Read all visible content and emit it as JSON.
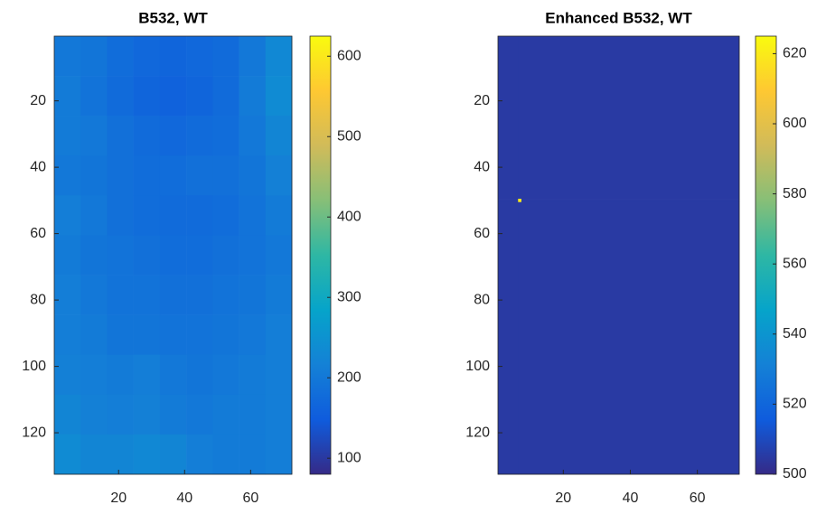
{
  "chart_data": [
    {
      "type": "heatmap",
      "title": "B532, WT",
      "xbins": [
        0.5,
        8.5,
        16.5,
        24.5,
        32.5,
        40.5,
        48.5,
        56.5,
        64.5,
        72.5
      ],
      "ybins": [
        0.5,
        12.5,
        24.5,
        36.5,
        48.5,
        60.5,
        72.5,
        84.5,
        96.5,
        108.5,
        120.5,
        132.5
      ],
      "values": [
        [
          200,
          195,
          180,
          170,
          165,
          170,
          175,
          200,
          230
        ],
        [
          205,
          190,
          175,
          165,
          160,
          165,
          175,
          205,
          235
        ],
        [
          205,
          200,
          185,
          175,
          170,
          175,
          180,
          200,
          225
        ],
        [
          200,
          195,
          185,
          180,
          180,
          185,
          185,
          195,
          215
        ],
        [
          210,
          200,
          185,
          180,
          175,
          175,
          180,
          190,
          205
        ],
        [
          205,
          195,
          190,
          185,
          180,
          180,
          185,
          190,
          200
        ],
        [
          210,
          200,
          190,
          190,
          185,
          185,
          190,
          195,
          205
        ],
        [
          210,
          205,
          195,
          195,
          190,
          190,
          195,
          200,
          210
        ],
        [
          215,
          210,
          205,
          210,
          200,
          195,
          200,
          205,
          210
        ],
        [
          225,
          215,
          210,
          215,
          205,
          200,
          205,
          205,
          210
        ],
        [
          235,
          225,
          225,
          230,
          225,
          210,
          205,
          205,
          210
        ]
      ],
      "xlim": [
        0.5,
        72.5
      ],
      "ylim": [
        0.5,
        132.5
      ],
      "y_reversed": true,
      "xticks": [
        20,
        40,
        60
      ],
      "yticks": [
        20,
        40,
        60,
        80,
        100,
        120
      ],
      "clim": [
        80,
        625
      ],
      "cticks": [
        100,
        200,
        300,
        400,
        500,
        600
      ],
      "colormap": [
        "#352a87",
        "#0f5cdd",
        "#1481d6",
        "#06a4ca",
        "#2eb7a4",
        "#87bf77",
        "#d1bb59",
        "#fec832",
        "#f9fb0e"
      ]
    },
    {
      "type": "heatmap",
      "title": "Enhanced B532, WT",
      "xbins": [
        0.5,
        6.5,
        7.5,
        72.5
      ],
      "ybins": [
        0.5,
        49.5,
        50.5,
        132.5
      ],
      "values": [
        [
          505,
          505,
          505
        ],
        [
          505,
          620,
          505
        ],
        [
          505,
          505,
          505
        ]
      ],
      "xlim": [
        0.5,
        72.5
      ],
      "ylim": [
        0.5,
        132.5
      ],
      "y_reversed": true,
      "xticks": [
        20,
        40,
        60
      ],
      "yticks": [
        20,
        40,
        60,
        80,
        100,
        120
      ],
      "clim": [
        500,
        625
      ],
      "cticks": [
        500,
        520,
        540,
        560,
        580,
        600,
        620
      ],
      "colormap": [
        "#352a87",
        "#0f5cdd",
        "#1481d6",
        "#06a4ca",
        "#2eb7a4",
        "#87bf77",
        "#d1bb59",
        "#fec832",
        "#f9fb0e"
      ]
    }
  ]
}
